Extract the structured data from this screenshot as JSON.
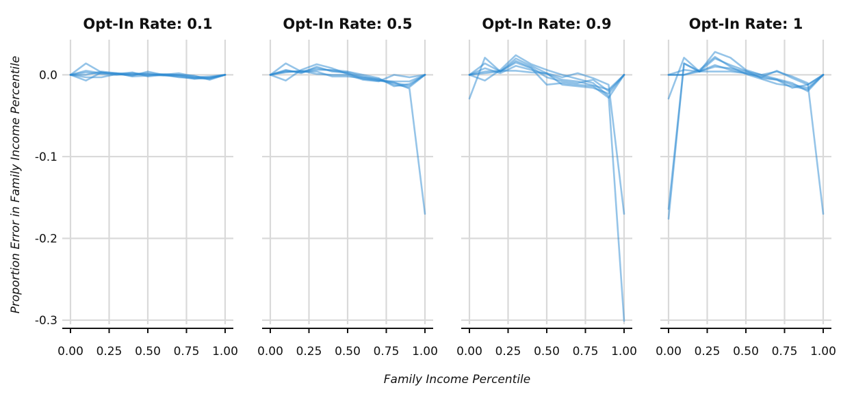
{
  "colors": {
    "line": "#2b8ad1",
    "grid": "#d9d9d9",
    "axis": "#111111"
  },
  "chart_data": {
    "type": "line",
    "xlabel": "Family Income Percentile",
    "ylabel": "Proportion Error in Family Income Percentile",
    "x_ticks": [
      "0.00",
      "0.25",
      "0.50",
      "0.75",
      "1.00"
    ],
    "y_ticks": [
      "0.0",
      "-0.1",
      "-0.2",
      "-0.3"
    ],
    "xlim": [
      0,
      1
    ],
    "ylim": [
      -0.31,
      0.043
    ],
    "grid": true,
    "x": [
      0,
      0.1,
      0.2,
      0.3,
      0.4,
      0.5,
      0.6,
      0.7,
      0.8,
      0.9,
      1.0
    ],
    "panels": [
      {
        "title": "Opt-In Rate: 0.1",
        "series": [
          {
            "values": [
              0,
              0.014,
              0.003,
              0.001,
              0.0,
              0.002,
              0.0,
              0.0,
              -0.004,
              -0.005,
              0.0
            ]
          },
          {
            "values": [
              0,
              -0.007,
              0.003,
              0.001,
              -0.001,
              0.004,
              0.0,
              0.002,
              -0.002,
              -0.004,
              0.0
            ]
          },
          {
            "values": [
              0,
              -0.003,
              -0.003,
              0.001,
              0.003,
              -0.002,
              0.0,
              -0.002,
              -0.005,
              -0.003,
              0.0
            ]
          },
          {
            "values": [
              0,
              0.003,
              0.001,
              0.0,
              0.002,
              0.001,
              -0.001,
              -0.001,
              -0.003,
              -0.002,
              0.0
            ]
          },
          {
            "values": [
              0,
              0.005,
              0.002,
              0.002,
              -0.002,
              -0.001,
              0.001,
              0.0,
              -0.001,
              -0.006,
              0.0
            ]
          },
          {
            "values": [
              0,
              0.0,
              0.004,
              0.002,
              0.001,
              0.0,
              0.0,
              -0.003,
              -0.004,
              -0.004,
              0.0
            ]
          }
        ]
      },
      {
        "title": "Opt-In Rate: 0.5",
        "series": [
          {
            "values": [
              0,
              0.014,
              0.004,
              0.008,
              0.005,
              0.002,
              -0.005,
              -0.007,
              -0.01,
              -0.013,
              0.0
            ]
          },
          {
            "values": [
              0,
              -0.007,
              0.006,
              0.013,
              0.008,
              0.001,
              -0.003,
              -0.005,
              -0.012,
              -0.015,
              0.0
            ]
          },
          {
            "values": [
              0,
              0.006,
              0.002,
              0.01,
              0.004,
              0.003,
              -0.002,
              -0.006,
              -0.009,
              -0.017,
              -0.17
            ]
          },
          {
            "values": [
              0,
              0.003,
              0.005,
              0.001,
              0.0,
              0.0,
              -0.006,
              -0.008,
              0.0,
              -0.003,
              0.0
            ]
          },
          {
            "values": [
              0,
              0.005,
              0.003,
              0.006,
              0.006,
              0.004,
              0.0,
              -0.004,
              -0.014,
              -0.011,
              0.0
            ]
          },
          {
            "values": [
              0,
              0.004,
              0.004,
              0.004,
              -0.002,
              -0.002,
              -0.004,
              -0.007,
              -0.008,
              -0.008,
              0.0
            ]
          }
        ]
      },
      {
        "title": "Opt-In Rate: 0.9",
        "series": [
          {
            "values": [
              -0.029,
              0.021,
              0.004,
              0.02,
              0.011,
              0.002,
              -0.012,
              -0.014,
              -0.016,
              -0.023,
              0.0
            ]
          },
          {
            "values": [
              0,
              -0.007,
              0.006,
              0.024,
              0.013,
              0.006,
              0.0,
              -0.005,
              -0.01,
              -0.026,
              -0.301
            ]
          },
          {
            "values": [
              0,
              0.014,
              0.004,
              0.015,
              0.008,
              -0.012,
              -0.01,
              -0.012,
              -0.014,
              -0.028,
              0.0
            ]
          },
          {
            "values": [
              0,
              0.004,
              0.005,
              0.005,
              0.003,
              0.002,
              -0.003,
              0.002,
              -0.004,
              -0.012,
              -0.17
            ]
          },
          {
            "values": [
              0,
              0.008,
              0.002,
              0.011,
              0.006,
              0.001,
              -0.006,
              -0.008,
              -0.013,
              -0.018,
              0.0
            ]
          },
          {
            "values": [
              0,
              0.002,
              0.004,
              0.017,
              0.009,
              -0.003,
              -0.008,
              -0.01,
              -0.006,
              -0.02,
              0.0
            ]
          }
        ]
      },
      {
        "title": "Opt-In Rate: 1",
        "series": [
          {
            "values": [
              -0.029,
              0.021,
              0.004,
              0.028,
              0.021,
              0.006,
              0.0,
              -0.005,
              -0.01,
              -0.02,
              0.0
            ]
          },
          {
            "values": [
              -0.176,
              0.014,
              0.004,
              0.02,
              0.012,
              0.005,
              -0.004,
              -0.006,
              -0.016,
              -0.012,
              0.0
            ]
          },
          {
            "values": [
              0,
              0.0,
              0.004,
              0.01,
              0.008,
              0.004,
              0.0,
              0.004,
              -0.002,
              -0.01,
              -0.17
            ]
          },
          {
            "values": [
              -0.164,
              0.014,
              0.004,
              0.012,
              0.006,
              0.002,
              -0.002,
              -0.006,
              -0.012,
              -0.016,
              0.0
            ]
          },
          {
            "values": [
              0,
              0.0,
              0.006,
              0.022,
              0.01,
              0.001,
              -0.005,
              -0.011,
              -0.014,
              -0.018,
              0.0
            ]
          },
          {
            "values": [
              0,
              0.006,
              0.004,
              0.004,
              0.004,
              0.002,
              -0.003,
              0.005,
              -0.004,
              -0.012,
              0.0
            ]
          }
        ]
      }
    ]
  }
}
